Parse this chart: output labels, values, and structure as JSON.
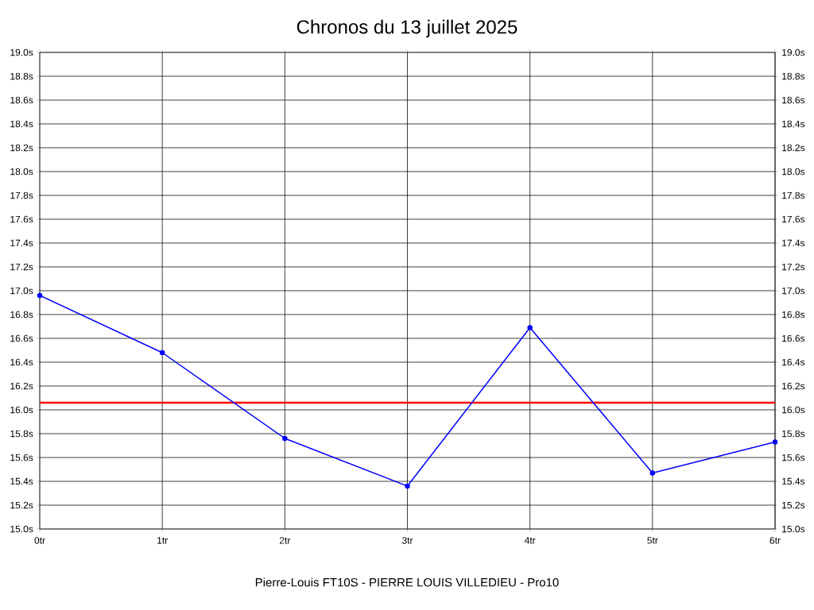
{
  "chart_data": {
    "type": "line",
    "title": "Chronos du 13 juillet 2025",
    "xlabel": "Pierre-Louis FT10S - PIERRE LOUIS VILLEDIEU - Pro10",
    "x": [
      0,
      1,
      2,
      3,
      4,
      5,
      6
    ],
    "series": [
      {
        "color": "#0000ff",
        "values": [
          16.96,
          16.48,
          15.76,
          15.36,
          16.69,
          15.47,
          15.73
        ]
      }
    ],
    "xlim": [
      0,
      6
    ],
    "xticks": [
      {
        "value": 0,
        "label": "0tr"
      },
      {
        "value": 1,
        "label": "1tr"
      },
      {
        "value": 2,
        "label": "2tr"
      },
      {
        "value": 3,
        "label": "3tr"
      },
      {
        "value": 4,
        "label": "4tr"
      },
      {
        "value": 5,
        "label": "5tr"
      },
      {
        "value": 6,
        "label": "6tr"
      }
    ],
    "ylim": [
      15.0,
      19.0
    ],
    "yticks": [
      {
        "value": 15.0,
        "label": "15.0s"
      },
      {
        "value": 15.2,
        "label": "15.2s"
      },
      {
        "value": 15.4,
        "label": "15.4s"
      },
      {
        "value": 15.6,
        "label": "15.6s"
      },
      {
        "value": 15.8,
        "label": "15.8s"
      },
      {
        "value": 16.0,
        "label": "16.0s"
      },
      {
        "value": 16.2,
        "label": "16.2s"
      },
      {
        "value": 16.4,
        "label": "16.4s"
      },
      {
        "value": 16.6,
        "label": "16.6s"
      },
      {
        "value": 16.8,
        "label": "16.8s"
      },
      {
        "value": 17.0,
        "label": "17.0s"
      },
      {
        "value": 17.2,
        "label": "17.2s"
      },
      {
        "value": 17.4,
        "label": "17.4s"
      },
      {
        "value": 17.6,
        "label": "17.6s"
      },
      {
        "value": 17.8,
        "label": "17.8s"
      },
      {
        "value": 18.0,
        "label": "18.0s"
      },
      {
        "value": 18.2,
        "label": "18.2s"
      },
      {
        "value": 18.4,
        "label": "18.4s"
      },
      {
        "value": 18.6,
        "label": "18.6s"
      },
      {
        "value": 18.8,
        "label": "18.8s"
      },
      {
        "value": 19.0,
        "label": "19.0s"
      }
    ],
    "y2lim": [
      15.0,
      19.0
    ],
    "y2ticks": [
      {
        "value": 15.0,
        "label": "15.0s"
      },
      {
        "value": 15.2,
        "label": "15.2s"
      },
      {
        "value": 15.4,
        "label": "15.4s"
      },
      {
        "value": 15.6,
        "label": "15.6s"
      },
      {
        "value": 15.8,
        "label": "15.8s"
      },
      {
        "value": 16.0,
        "label": "16.0s"
      },
      {
        "value": 16.2,
        "label": "16.2s"
      },
      {
        "value": 16.4,
        "label": "16.4s"
      },
      {
        "value": 16.6,
        "label": "16.6s"
      },
      {
        "value": 16.8,
        "label": "16.8s"
      },
      {
        "value": 17.0,
        "label": "17.0s"
      },
      {
        "value": 17.2,
        "label": "17.2s"
      },
      {
        "value": 17.4,
        "label": "17.4s"
      },
      {
        "value": 17.6,
        "label": "17.6s"
      },
      {
        "value": 17.8,
        "label": "17.8s"
      },
      {
        "value": 18.0,
        "label": "18.0s"
      },
      {
        "value": 18.2,
        "label": "18.2s"
      },
      {
        "value": 18.4,
        "label": "18.4s"
      },
      {
        "value": 18.6,
        "label": "18.6s"
      },
      {
        "value": 18.8,
        "label": "18.8s"
      },
      {
        "value": 19.0,
        "label": "19.0s"
      }
    ],
    "ref_lines": [
      {
        "axis": "y",
        "value": 16.06,
        "color": "#ff0000"
      }
    ],
    "grid": true,
    "marker": "circle",
    "line_style": "solid"
  }
}
